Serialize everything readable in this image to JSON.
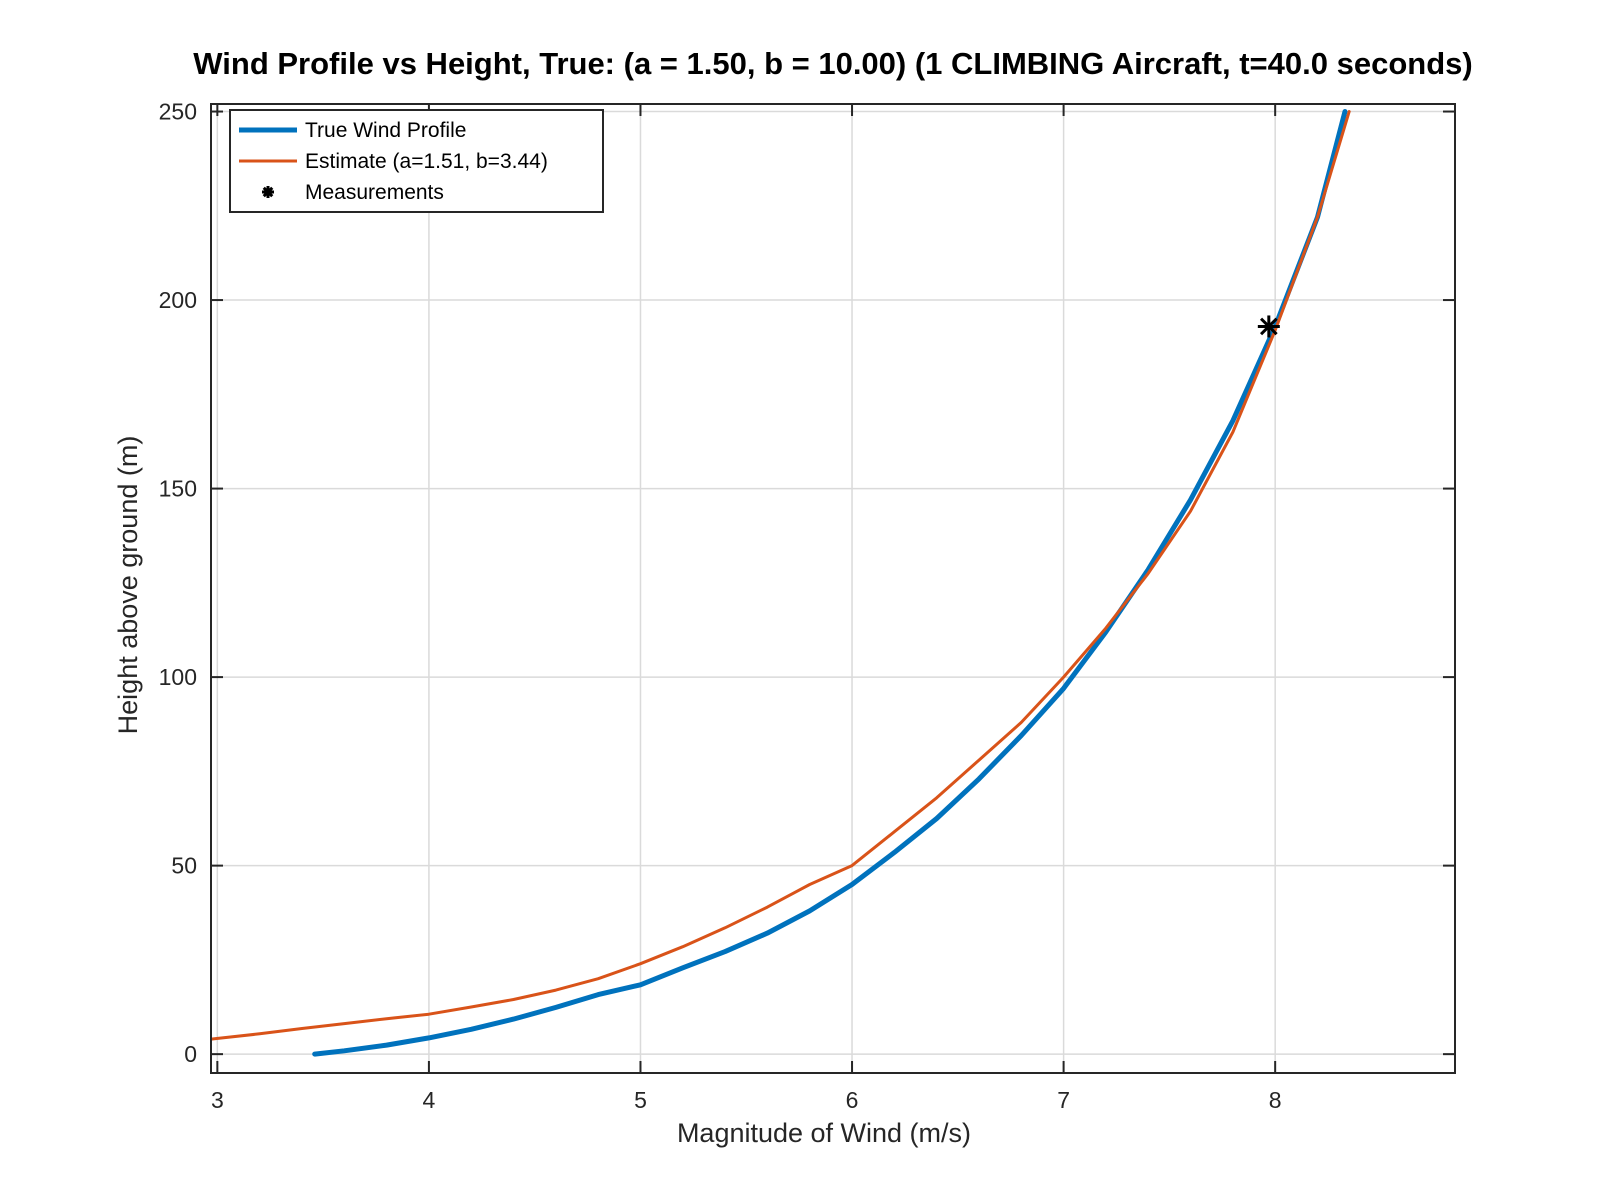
{
  "chart_data": {
    "type": "line",
    "title": "Wind Profile vs Height, True: (a = 1.50, b = 10.00) (1 CLIMBING Aircraft, t=40.0 seconds)",
    "xlabel": "Magnitude of Wind (m/s)",
    "ylabel": "Height above ground (m)",
    "xlim": [
      2.97,
      8.85
    ],
    "ylim": [
      -5,
      252
    ],
    "xticks": [
      3,
      4,
      5,
      6,
      7,
      8
    ],
    "yticks": [
      0,
      50,
      100,
      150,
      200,
      250
    ],
    "grid": true,
    "legend_position": "top-left",
    "series": [
      {
        "name": "True Wind Profile",
        "kind": "line",
        "color": "#0072BD",
        "x": [
          3.46,
          3.6,
          3.8,
          4.0,
          4.2,
          4.4,
          4.6,
          4.8,
          5.0,
          5.2,
          5.4,
          5.6,
          5.8,
          6.0,
          6.2,
          6.4,
          6.6,
          6.8,
          7.0,
          7.2,
          7.4,
          7.6,
          7.8,
          8.0,
          8.2,
          8.33
        ],
        "y": [
          0,
          0.9,
          2.4,
          4.3,
          6.6,
          9.3,
          12.4,
          15.8,
          18.4,
          22.9,
          27.2,
          32.1,
          38.0,
          45.0,
          53.5,
          62.5,
          73.0,
          84.5,
          97.0,
          112.0,
          128.5,
          147.0,
          168.0,
          193.0,
          222.0,
          250.0
        ]
      },
      {
        "name": "Estimate (a=1.51, b=3.44)",
        "kind": "line",
        "color": "#D95319",
        "x": [
          2.97,
          3.2,
          3.4,
          3.6,
          3.8,
          4.0,
          4.2,
          4.4,
          4.6,
          4.8,
          5.0,
          5.2,
          5.4,
          5.6,
          5.8,
          6.0,
          6.2,
          6.4,
          6.6,
          6.8,
          7.0,
          7.2,
          7.4,
          7.6,
          7.8,
          8.0,
          8.2,
          8.35
        ],
        "y": [
          4.0,
          5.4,
          6.8,
          8.1,
          9.4,
          10.6,
          12.5,
          14.5,
          17.0,
          20.0,
          24.0,
          28.5,
          33.5,
          39.0,
          45.0,
          50.0,
          59.0,
          68.0,
          78.0,
          88.0,
          100.0,
          113.0,
          127.5,
          144.0,
          165.0,
          192.0,
          222.0,
          250.0
        ]
      },
      {
        "name": "Measurements",
        "kind": "scatter",
        "marker": "asterisk",
        "color": "#000000",
        "x": [
          7.97
        ],
        "y": [
          193
        ]
      }
    ]
  }
}
